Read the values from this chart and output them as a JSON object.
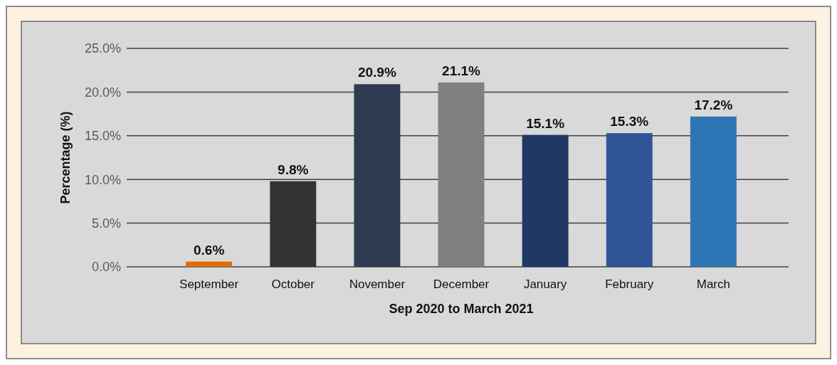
{
  "chart_data": {
    "type": "bar",
    "xlabel": "Sep 2020 to March 2021",
    "ylabel": "Percentage (%)",
    "categories": [
      "September",
      "October",
      "November",
      "December",
      "January",
      "February",
      "March"
    ],
    "values": [
      0.6,
      9.8,
      20.9,
      21.1,
      15.1,
      15.3,
      17.2
    ],
    "value_labels": [
      "0.6%",
      "9.8%",
      "20.9%",
      "21.1%",
      "15.1%",
      "15.3%",
      "17.2%"
    ],
    "colors": [
      "#e36c0a",
      "#333333",
      "#2f3b50",
      "#808080",
      "#1f3864",
      "#2f5597",
      "#2e75b6"
    ],
    "ylim": [
      0,
      25
    ],
    "yticks": [
      {
        "value": 0,
        "label": "0.0%"
      },
      {
        "value": 5,
        "label": "5.0%"
      },
      {
        "value": 10,
        "label": "10.0%"
      },
      {
        "value": 15,
        "label": "15.0%"
      },
      {
        "value": 20,
        "label": "20.0%"
      },
      {
        "value": 25,
        "label": "25.0%"
      }
    ],
    "grid": "y"
  }
}
